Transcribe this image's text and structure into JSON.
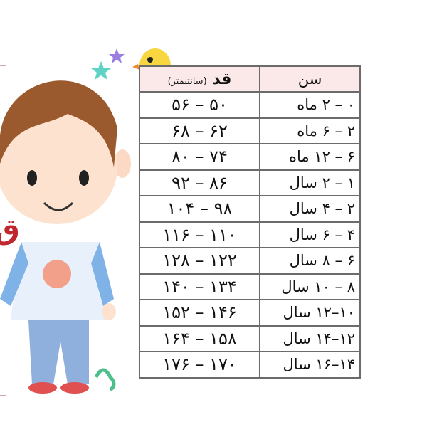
{
  "table": {
    "headers": {
      "height": "قد",
      "height_unit": "(سانتیمتر)",
      "age": "سن"
    },
    "rows": [
      {
        "height": "۵۰ – ۵۶",
        "age": "۰ – ۲ ماه"
      },
      {
        "height": "۶۲ – ۶۸",
        "age": "۲ – ۶ ماه"
      },
      {
        "height": "۷۴ – ۸۰",
        "age": "۶ – ۱۲ ماه"
      },
      {
        "height": "۸۶ – ۹۲",
        "age": "۱ – ۲ سال"
      },
      {
        "height": "۹۸ – ۱۰۴",
        "age": "۲ – ۴ سال"
      },
      {
        "height": "۱۱۰ – ۱۱۶",
        "age": "۴ – ۶ سال"
      },
      {
        "height": "۱۲۲ – ۱۲۸",
        "age": "۶ – ۸ سال"
      },
      {
        "height": "۱۳۴ – ۱۴۰",
        "age": "۸ – ۱۰ سال"
      },
      {
        "height": "۱۴۶ – ۱۵۲",
        "age": "۱۰–۱۲ سال"
      },
      {
        "height": "۱۵۸ – ۱۶۴",
        "age": "۱۲–۱۴ سال"
      },
      {
        "height": "۱۷۰ – ۱۷۶",
        "age": "۱۴–۱۶ سال"
      }
    ]
  },
  "side_letter": "ق",
  "colors": {
    "header_bg": "#fbe9ea",
    "side_letter": "#c0262d",
    "shirt": "#e8f0fb",
    "sleeve": "#7fb2e6",
    "hair": "#9b5a2e",
    "pants": "#8fb0dd"
  }
}
